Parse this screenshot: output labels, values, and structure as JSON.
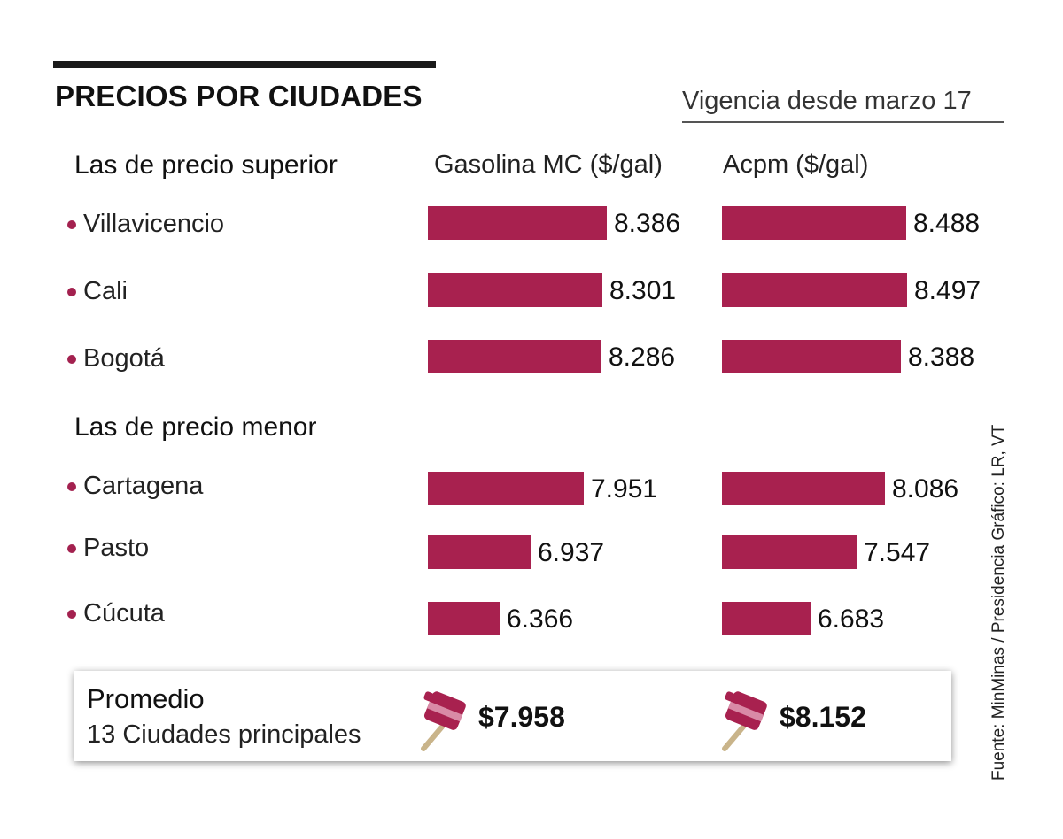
{
  "title": "PRECIOS POR CIUDADES",
  "subtitle": "Vigencia desde marzo 17",
  "sections": {
    "superior": "Las de precio superior",
    "menor": "Las de precio menor"
  },
  "column_headers": {
    "gasolina": "Gasolina MC ($/gal)",
    "acpm": "Acpm  ($/gal)"
  },
  "colors": {
    "bar": "#a8214f",
    "bullet": "#a3214f"
  },
  "chart_data": {
    "type": "bar",
    "orientation": "horizontal",
    "categories": [
      "Villavicencio",
      "Cali",
      "Bogotá",
      "Cartagena",
      "Pasto",
      "Cúcuta"
    ],
    "series": [
      {
        "name": "Gasolina MC ($/gal)",
        "values": [
          8386,
          8301,
          8286,
          7951,
          6937,
          6366
        ],
        "labels": [
          "8.386",
          "8.301",
          "8.286",
          "7.951",
          "6.937",
          "6.366"
        ]
      },
      {
        "name": "Acpm  ($/gal)",
        "values": [
          8488,
          8497,
          8388,
          8086,
          7547,
          6683
        ],
        "labels": [
          "8.488",
          "8.497",
          "8.388",
          "8.086",
          "7.547",
          "6.683"
        ]
      }
    ]
  },
  "average": {
    "title": "Promedio",
    "subtitle": "13 Ciudades principales",
    "gasolina": "$7.958",
    "acpm": "$8.152",
    "icon": "fuel-pump-nozzle-icon"
  },
  "source": "Fuente: MinMinas / Presidencia  Gráfico: LR, VT"
}
